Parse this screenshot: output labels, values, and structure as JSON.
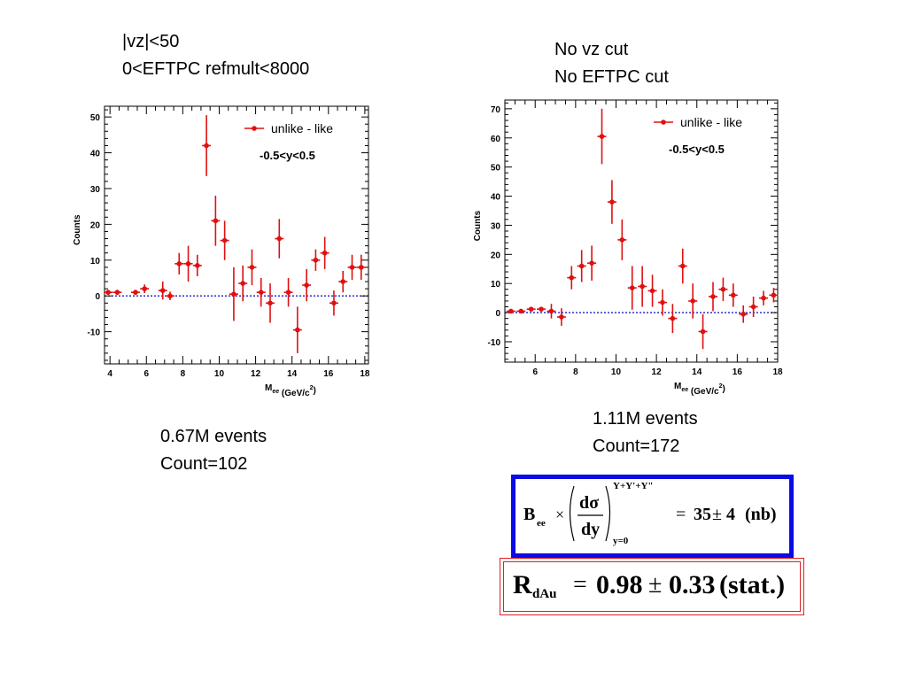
{
  "left_caption": {
    "line1": "|vz|<50",
    "line2": "0<EFTPC refmult<8000"
  },
  "right_caption": {
    "line1": "No vz cut",
    "line2": "No EFTPC cut"
  },
  "left_stats": {
    "line1": "0.67M events",
    "line2": "Count=102"
  },
  "right_stats": {
    "line1": "1.11M events",
    "line2": "Count=172"
  },
  "colors": {
    "marker": "#e01010",
    "baseline": "#1a1ac8",
    "blue_box": "#0a0ae6",
    "red_box": "#e02020"
  },
  "formula_box": {
    "B": "B",
    "ee": "ee",
    "times": "×",
    "d_sigma": "dσ",
    "dy": "dy",
    "superscript": "Y+Y'+Y\"",
    "subscript": "y=0",
    "equals": "=",
    "value": "35",
    "pm": "±",
    "err": "4",
    "unit": "(nb)"
  },
  "rdau_box": {
    "R": "R",
    "sub": "dAu",
    "equals": "=",
    "value": "0.98",
    "pm": "±",
    "err": "0.33",
    "unit": "(stat.)"
  },
  "chart_data": [
    {
      "type": "scatter",
      "ylabel": "Counts",
      "xlabel_main": "M",
      "xlabel_sub": "ee",
      "xlabel_unit": " (GeV/c",
      "xlabel_sup": "2",
      "xlabel_close": ")",
      "legend": "unlike - like",
      "annotation": "-0.5<y<0.5",
      "xlim": [
        3.7,
        18.2
      ],
      "ylim": [
        -19,
        53
      ],
      "xticks": [
        4,
        6,
        8,
        10,
        12,
        14,
        16,
        18
      ],
      "yticks": [
        -10,
        0,
        10,
        20,
        30,
        40,
        50
      ],
      "series": [
        {
          "x": [
            3.9,
            4.4,
            5.4,
            5.9,
            6.9,
            7.3,
            7.8,
            8.3,
            8.8,
            9.3,
            9.8,
            10.3,
            10.8,
            11.3,
            11.8,
            12.3,
            12.8,
            13.3,
            13.8,
            14.3,
            14.8,
            15.3,
            15.8,
            16.3,
            16.8,
            17.3,
            17.8
          ],
          "y": [
            1.0,
            1.0,
            1.0,
            2.0,
            1.5,
            0.0,
            9.0,
            9.0,
            8.5,
            42.0,
            21.0,
            15.5,
            0.5,
            3.5,
            8.0,
            1.0,
            -2.0,
            16.0,
            1.0,
            -9.5,
            3.0,
            10.0,
            12.0,
            -2.0,
            4.0,
            8.0,
            8.0
          ],
          "err": [
            0.7,
            0.7,
            0.7,
            1.2,
            2.5,
            1.2,
            3.0,
            5.0,
            3.0,
            8.5,
            7.0,
            5.5,
            7.5,
            5.0,
            5.0,
            4.0,
            5.5,
            5.5,
            4.0,
            6.5,
            4.5,
            3.0,
            4.5,
            3.5,
            3.0,
            3.5,
            3.5
          ]
        }
      ]
    },
    {
      "type": "scatter",
      "ylabel": "Counts",
      "xlabel_main": "M",
      "xlabel_sub": "ee",
      "xlabel_unit": " (GeV/c",
      "xlabel_sup": "2",
      "xlabel_close": ")",
      "legend": "unlike - like",
      "annotation": "-0.5<y<0.5",
      "xlim": [
        4.5,
        18.0
      ],
      "ylim": [
        -17,
        73
      ],
      "xticks": [
        6,
        8,
        10,
        12,
        14,
        16,
        18
      ],
      "yticks": [
        -10,
        0,
        10,
        20,
        30,
        40,
        50,
        60,
        70
      ],
      "series": [
        {
          "x": [
            4.8,
            5.3,
            5.8,
            6.3,
            6.8,
            7.3,
            7.8,
            8.3,
            8.8,
            9.3,
            9.8,
            10.3,
            10.8,
            11.3,
            11.8,
            12.3,
            12.8,
            13.3,
            13.8,
            14.3,
            14.8,
            15.3,
            15.8,
            16.3,
            16.8,
            17.3,
            17.8
          ],
          "y": [
            0.5,
            0.5,
            1.2,
            1.2,
            0.5,
            -1.5,
            12.0,
            16.0,
            17.0,
            60.5,
            38.0,
            25.0,
            8.5,
            9.0,
            7.5,
            3.5,
            -2.0,
            16.0,
            4.0,
            -6.5,
            5.5,
            8.0,
            6.0,
            -0.5,
            2.0,
            5.0,
            6.0
          ],
          "err": [
            0.6,
            0.6,
            0.6,
            0.6,
            2.5,
            3.0,
            4.0,
            5.5,
            6.0,
            9.5,
            7.5,
            7.0,
            7.5,
            7.0,
            5.5,
            4.5,
            5.0,
            6.0,
            6.0,
            6.0,
            5.0,
            4.0,
            4.0,
            3.0,
            3.5,
            2.5,
            2.5
          ]
        }
      ]
    }
  ]
}
